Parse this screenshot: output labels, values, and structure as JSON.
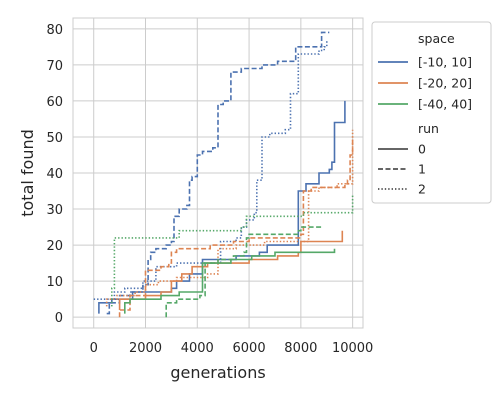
{
  "chart_data": {
    "type": "line",
    "xlabel": "generations",
    "ylabel": "total found",
    "xlim": [
      -800,
      10400
    ],
    "ylim": [
      -3,
      83
    ],
    "xticks": [
      0,
      2000,
      4000,
      6000,
      8000,
      10000
    ],
    "yticks": [
      0,
      10,
      20,
      30,
      40,
      50,
      60,
      70,
      80
    ],
    "grid": true,
    "legend": {
      "placement": "outside-right",
      "hue_title": "space",
      "hue_entries": [
        {
          "label": "[-10, 10]",
          "color": "#4c72b0"
        },
        {
          "label": "[-20, 20]",
          "color": "#dd8452"
        },
        {
          "label": "[-40, 40]",
          "color": "#55a868"
        }
      ],
      "style_title": "run",
      "style_entries": [
        {
          "label": "0",
          "dash": "solid"
        },
        {
          "label": "1",
          "dash": "dashed"
        },
        {
          "label": "2",
          "dash": "dotted"
        }
      ]
    },
    "series": [
      {
        "space": "[-10, 10]",
        "run": "0",
        "color": "#4c72b0",
        "dash": "solid",
        "points": [
          [
            200,
            1
          ],
          [
            200,
            4
          ],
          [
            700,
            4
          ],
          [
            700,
            5
          ],
          [
            1500,
            5
          ],
          [
            1500,
            7
          ],
          [
            3000,
            8
          ],
          [
            3200,
            10
          ],
          [
            3700,
            12
          ],
          [
            4200,
            16
          ],
          [
            4700,
            16
          ],
          [
            5500,
            17
          ],
          [
            6400,
            18
          ],
          [
            6700,
            20
          ],
          [
            7900,
            21
          ],
          [
            7900,
            35
          ],
          [
            8200,
            37
          ],
          [
            8700,
            40
          ],
          [
            9100,
            41
          ],
          [
            9200,
            43
          ],
          [
            9300,
            54
          ],
          [
            9700,
            55
          ],
          [
            9700,
            60
          ]
        ]
      },
      {
        "space": "[-10, 10]",
        "run": "1",
        "color": "#4c72b0",
        "dash": "dashed",
        "points": [
          [
            500,
            1
          ],
          [
            600,
            4
          ],
          [
            900,
            4
          ],
          [
            1000,
            6
          ],
          [
            1400,
            7
          ],
          [
            1900,
            9
          ],
          [
            2100,
            16
          ],
          [
            2200,
            18
          ],
          [
            2400,
            19
          ],
          [
            2800,
            20
          ],
          [
            3000,
            21
          ],
          [
            3100,
            28
          ],
          [
            3300,
            30
          ],
          [
            3600,
            31
          ],
          [
            3700,
            38
          ],
          [
            3800,
            39
          ],
          [
            4000,
            45
          ],
          [
            4200,
            46
          ],
          [
            4600,
            47
          ],
          [
            4800,
            59
          ],
          [
            5000,
            60
          ],
          [
            5200,
            60
          ],
          [
            5300,
            68
          ],
          [
            5700,
            69
          ],
          [
            6500,
            70
          ],
          [
            7100,
            71
          ],
          [
            7800,
            75
          ],
          [
            8800,
            76
          ],
          [
            8800,
            79
          ],
          [
            9100,
            79
          ]
        ]
      },
      {
        "space": "[-10, 10]",
        "run": "2",
        "color": "#4c72b0",
        "dash": "dotted",
        "points": [
          [
            0,
            5
          ],
          [
            800,
            7
          ],
          [
            1200,
            8
          ],
          [
            1900,
            10
          ],
          [
            2400,
            14
          ],
          [
            3200,
            15
          ],
          [
            4600,
            15
          ],
          [
            4900,
            21
          ],
          [
            5500,
            22
          ],
          [
            5700,
            25
          ],
          [
            5900,
            27
          ],
          [
            6200,
            29
          ],
          [
            6300,
            38
          ],
          [
            6500,
            50
          ],
          [
            6800,
            51
          ],
          [
            7400,
            52
          ],
          [
            7600,
            62
          ],
          [
            7900,
            73
          ],
          [
            8600,
            73
          ],
          [
            8700,
            74
          ],
          [
            8900,
            75
          ],
          [
            9000,
            77
          ]
        ]
      },
      {
        "space": "[-20, 20]",
        "run": "0",
        "color": "#dd8452",
        "dash": "solid",
        "points": [
          [
            1000,
            2
          ],
          [
            1000,
            5
          ],
          [
            2000,
            6
          ],
          [
            2600,
            7
          ],
          [
            3000,
            10
          ],
          [
            3400,
            12
          ],
          [
            3800,
            14
          ],
          [
            4400,
            15
          ],
          [
            6000,
            16
          ],
          [
            7100,
            17
          ],
          [
            7900,
            18
          ],
          [
            8000,
            21
          ],
          [
            8800,
            21
          ],
          [
            9600,
            22
          ],
          [
            9600,
            24
          ]
        ]
      },
      {
        "space": "[-20, 20]",
        "run": "1",
        "color": "#dd8452",
        "dash": "dashed",
        "points": [
          [
            1000,
            0
          ],
          [
            1000,
            2
          ],
          [
            1400,
            6
          ],
          [
            2000,
            6
          ],
          [
            2000,
            13
          ],
          [
            2600,
            14
          ],
          [
            2900,
            15
          ],
          [
            3000,
            18
          ],
          [
            3200,
            19
          ],
          [
            4500,
            20
          ],
          [
            5400,
            21
          ],
          [
            6000,
            22
          ],
          [
            8000,
            23
          ],
          [
            8100,
            35
          ],
          [
            8400,
            36
          ],
          [
            9700,
            37
          ],
          [
            9800,
            38
          ],
          [
            9900,
            45
          ],
          [
            10000,
            50
          ]
        ]
      },
      {
        "space": "[-20, 20]",
        "run": "2",
        "color": "#dd8452",
        "dash": "dotted",
        "points": [
          [
            500,
            3
          ],
          [
            500,
            5
          ],
          [
            900,
            6
          ],
          [
            1600,
            7
          ],
          [
            2000,
            9
          ],
          [
            2500,
            10
          ],
          [
            3200,
            11
          ],
          [
            4400,
            12
          ],
          [
            4800,
            19
          ],
          [
            5500,
            20
          ],
          [
            6600,
            21
          ],
          [
            8100,
            21
          ],
          [
            8300,
            35
          ],
          [
            8700,
            36
          ],
          [
            9400,
            37
          ],
          [
            10000,
            38
          ],
          [
            10000,
            52
          ]
        ]
      },
      {
        "space": "[-40, 40]",
        "run": "0",
        "color": "#55a868",
        "dash": "solid",
        "points": [
          [
            1200,
            1
          ],
          [
            1200,
            4
          ],
          [
            1400,
            4
          ],
          [
            1400,
            5
          ],
          [
            2600,
            6
          ],
          [
            3300,
            7
          ],
          [
            4200,
            7
          ],
          [
            4200,
            15
          ],
          [
            5300,
            16
          ],
          [
            6100,
            17
          ],
          [
            7000,
            18
          ],
          [
            8000,
            18
          ],
          [
            9300,
            19
          ]
        ]
      },
      {
        "space": "[-40, 40]",
        "run": "1",
        "color": "#55a868",
        "dash": "dashed",
        "points": [
          [
            2800,
            0
          ],
          [
            2800,
            4
          ],
          [
            3200,
            5
          ],
          [
            4100,
            6
          ],
          [
            4300,
            7
          ],
          [
            4300,
            15
          ],
          [
            4800,
            16
          ],
          [
            5400,
            17
          ],
          [
            5800,
            18
          ],
          [
            5900,
            22
          ],
          [
            6000,
            23
          ],
          [
            6600,
            23
          ],
          [
            7900,
            24
          ],
          [
            8000,
            24
          ],
          [
            8000,
            25
          ],
          [
            8800,
            25
          ]
        ]
      },
      {
        "space": "[-40, 40]",
        "run": "2",
        "color": "#55a868",
        "dash": "dotted",
        "points": [
          [
            700,
            3
          ],
          [
            700,
            8
          ],
          [
            800,
            22
          ],
          [
            3300,
            24
          ],
          [
            3800,
            24
          ],
          [
            5700,
            25
          ],
          [
            5900,
            28
          ],
          [
            8100,
            29
          ],
          [
            9700,
            29
          ],
          [
            10000,
            30
          ],
          [
            10000,
            34
          ]
        ]
      }
    ]
  }
}
